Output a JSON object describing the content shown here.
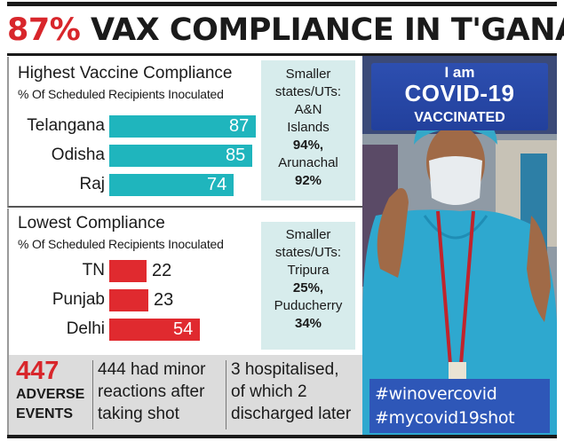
{
  "headline": {
    "pct": "87%",
    "rest": " VAX COMPLIANCE IN T'GANA"
  },
  "high": {
    "title": "Highest Vaccine Compliance",
    "subtitle": "% Of Scheduled Recipients Inoculated",
    "aside": [
      "Smaller",
      "states/UTs:",
      "A&N",
      "Islands",
      "94%,",
      "Arunachal",
      "92%"
    ]
  },
  "low": {
    "title": "Lowest Compliance",
    "subtitle": "% Of Scheduled Recipients Inoculated",
    "aside": [
      "Smaller",
      "states/UTs:",
      "Tripura",
      "25%,",
      "Puducherry",
      "34%"
    ]
  },
  "footer": {
    "count": "447",
    "count_label_1": "ADVERSE",
    "count_label_2": "EVENTS",
    "minor_1": "444 had minor",
    "minor_2": "reactions after",
    "minor_3": "taking shot",
    "hosp_1": "3 hospitalised,",
    "hosp_2": "of which 2",
    "hosp_3": "discharged later"
  },
  "photo": {
    "banner_1": "I am",
    "banner_2": "COVID-19",
    "banner_3": "VACCINATED",
    "hashtag_1": "#winovercovid",
    "hashtag_2": "#mycovid19shot"
  },
  "colors": {
    "teal": "#1fb5bd",
    "red": "#e02a2f",
    "headline_red": "#d8262b",
    "aside_bg": "#d7ecec"
  },
  "chart_data": [
    {
      "type": "bar",
      "orientation": "horizontal",
      "title": "Highest Vaccine Compliance",
      "subtitle": "% Of Scheduled Recipients Inoculated",
      "categories": [
        "Telangana",
        "Odisha",
        "Raj"
      ],
      "values": [
        87,
        85,
        74
      ],
      "xlim": [
        0,
        100
      ],
      "color": "#1fb5bd",
      "value_labels": "inside"
    },
    {
      "type": "bar",
      "orientation": "horizontal",
      "title": "Lowest Compliance",
      "subtitle": "% Of Scheduled Recipients Inoculated",
      "categories": [
        "TN",
        "Punjab",
        "Delhi"
      ],
      "values": [
        22,
        23,
        54
      ],
      "xlim": [
        0,
        100
      ],
      "color": "#e02a2f",
      "value_labels": "outside-when-short"
    }
  ]
}
